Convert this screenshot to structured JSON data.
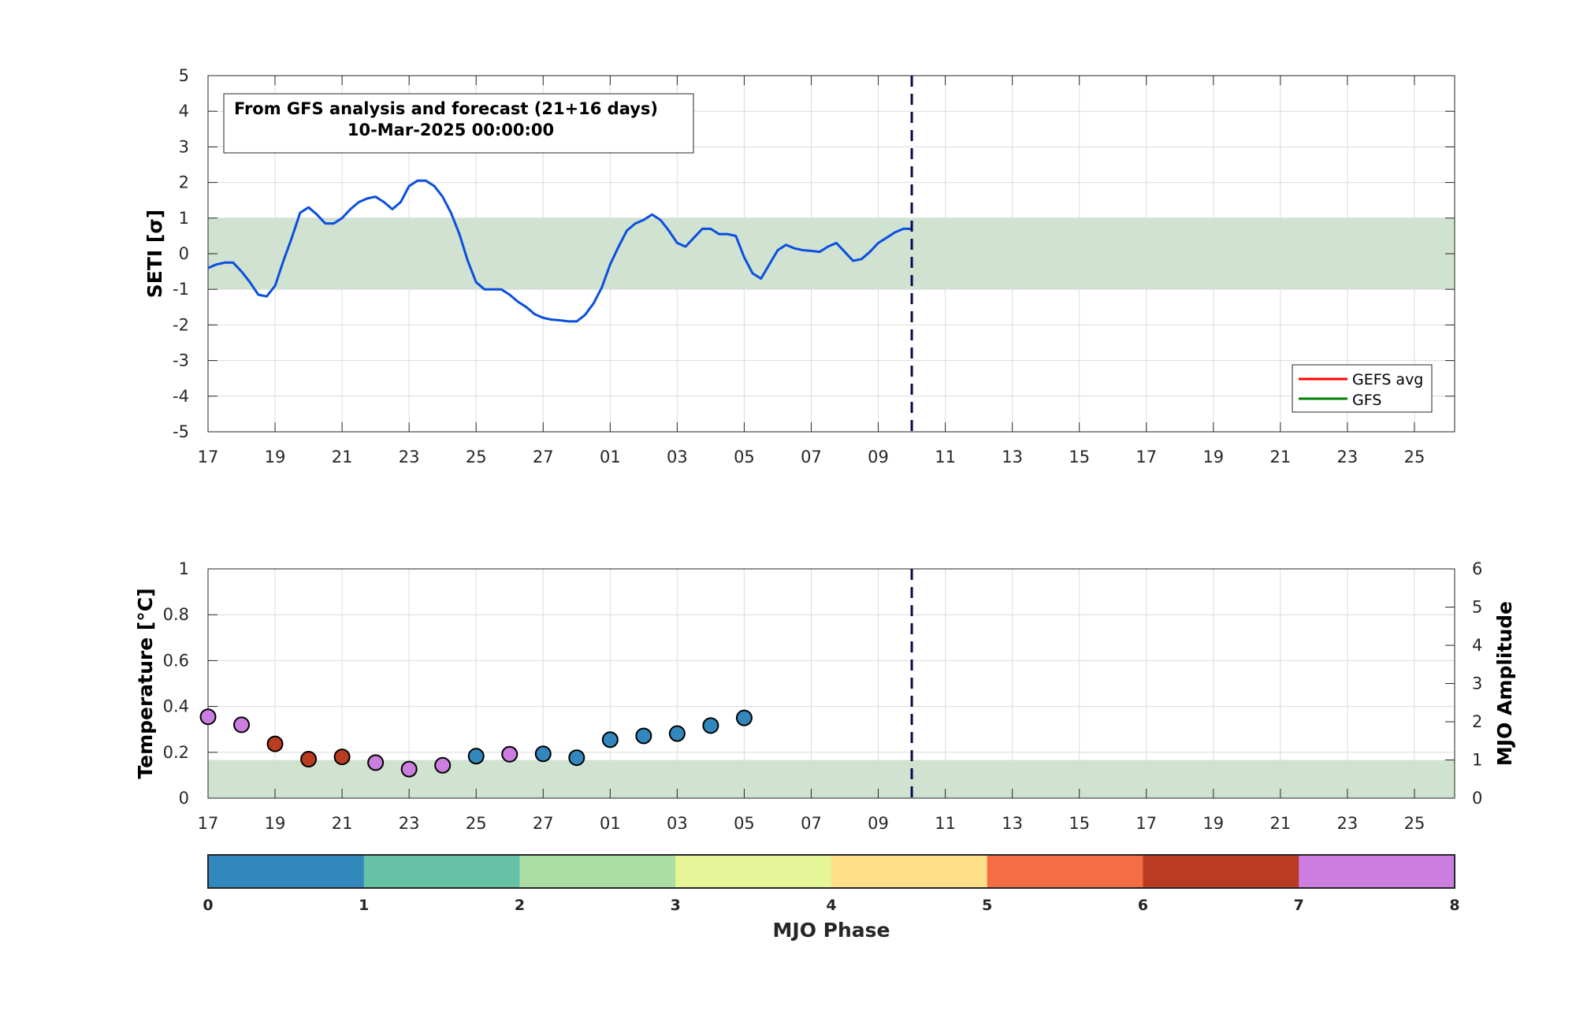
{
  "chart_data": [
    {
      "type": "line",
      "ylabel": "SETI [σ]",
      "ylim": [
        -5,
        5
      ],
      "yticks": [
        "5",
        "4",
        "3",
        "2",
        "1",
        "0",
        "-1",
        "-2",
        "-3",
        "-4",
        "-5"
      ],
      "xticks": [
        "17",
        "19",
        "21",
        "23",
        "25",
        "27",
        "01",
        "03",
        "05",
        "07",
        "09",
        "11",
        "13",
        "15",
        "17",
        "19",
        "21",
        "23",
        "25"
      ],
      "xlim_days": [
        0,
        37.2
      ],
      "x_unit": "days after 17-Feb-2025",
      "grid": true,
      "band": [
        -1,
        1
      ],
      "band_color": "#d0e2d0",
      "vline_x": 21,
      "annotation": [
        "From GFS analysis and forecast (21+16 days)",
        "10-Mar-2025 00:00:00"
      ],
      "legend": {
        "placement": "bottom-right",
        "entries": [
          {
            "name": "GEFS avg",
            "color": "#ff0000"
          },
          {
            "name": "GFS",
            "color": "#008000"
          }
        ]
      },
      "series": [
        {
          "color": "#0a4fe0",
          "x": [
            0,
            0.25,
            0.5,
            0.75,
            1,
            1.25,
            1.5,
            1.75,
            2,
            2.25,
            2.5,
            2.75,
            3,
            3.25,
            3.5,
            3.75,
            4,
            4.25,
            4.5,
            4.75,
            5,
            5.25,
            5.5,
            5.75,
            6,
            6.25,
            6.5,
            6.75,
            7,
            7.25,
            7.5,
            7.75,
            8,
            8.25,
            8.5,
            8.75,
            9,
            9.25,
            9.5,
            9.75,
            10,
            10.25,
            10.5,
            10.75,
            11,
            11.25,
            11.5,
            11.75,
            12,
            12.25,
            12.5,
            12.75,
            13,
            13.25,
            13.5,
            13.75,
            14,
            14.25,
            14.5,
            14.75,
            15,
            15.25,
            15.5,
            15.75,
            16,
            16.25,
            16.5,
            16.75,
            17,
            17.25,
            17.5,
            17.75,
            18,
            18.25,
            18.5,
            18.75,
            19,
            19.25,
            19.5,
            19.75,
            20,
            20.25,
            20.5,
            20.75,
            21
          ],
          "y": [
            -0.4,
            -0.3,
            -0.25,
            -0.25,
            -0.5,
            -0.8,
            -1.15,
            -1.2,
            -0.9,
            -0.2,
            0.45,
            1.15,
            1.3,
            1.1,
            0.85,
            0.85,
            1.0,
            1.25,
            1.45,
            1.55,
            1.6,
            1.45,
            1.25,
            1.45,
            1.9,
            2.05,
            2.05,
            1.9,
            1.6,
            1.15,
            0.55,
            -0.2,
            -0.8,
            -1.0,
            -1.0,
            -1.0,
            -1.15,
            -1.35,
            -1.5,
            -1.7,
            -1.8,
            -1.85,
            -1.87,
            -1.9,
            -1.9,
            -1.72,
            -1.4,
            -0.95,
            -0.3,
            0.2,
            0.65,
            0.85,
            0.95,
            1.1,
            0.95,
            0.65,
            0.3,
            0.2,
            0.45,
            0.7,
            0.7,
            0.55,
            0.55,
            0.5,
            -0.1,
            -0.55,
            -0.7,
            -0.3,
            0.1,
            0.25,
            0.15,
            0.1,
            0.08,
            0.05,
            0.2,
            0.3,
            0.05,
            -0.2,
            -0.15,
            0.05,
            0.3,
            0.45,
            0.6,
            0.7,
            0.7
          ]
        }
      ]
    },
    {
      "type": "scatter",
      "ylabel": "Temperature [°C]",
      "y2label": "MJO Amplitude",
      "ylim": [
        0,
        1
      ],
      "y2lim": [
        0,
        6
      ],
      "yticks": [
        "1",
        "0.8",
        "0.6",
        "0.4",
        "0.2",
        "0"
      ],
      "y2ticks": [
        "6",
        "5",
        "4",
        "3",
        "2",
        "1",
        "0"
      ],
      "xticks": [
        "17",
        "19",
        "21",
        "23",
        "25",
        "27",
        "01",
        "03",
        "05",
        "07",
        "09",
        "11",
        "13",
        "15",
        "17",
        "19",
        "21",
        "23",
        "25"
      ],
      "xlim_days": [
        0,
        37.2
      ],
      "x_unit": "days after 17-Feb-2025",
      "grid": true,
      "band_amplitude": [
        0,
        1
      ],
      "band_color": "#d0e2d0",
      "vline_x": 21,
      "points": [
        {
          "x": 0,
          "amp": 2.13,
          "phase": 7.5
        },
        {
          "x": 1,
          "amp": 1.92,
          "phase": 7.5
        },
        {
          "x": 2,
          "amp": 1.42,
          "phase": 6.5
        },
        {
          "x": 3,
          "amp": 1.02,
          "phase": 6.5
        },
        {
          "x": 4,
          "amp": 1.08,
          "phase": 6.5
        },
        {
          "x": 5,
          "amp": 0.93,
          "phase": 7.5
        },
        {
          "x": 6,
          "amp": 0.76,
          "phase": 7.5
        },
        {
          "x": 7,
          "amp": 0.86,
          "phase": 7.5
        },
        {
          "x": 8,
          "amp": 1.1,
          "phase": 0.5
        },
        {
          "x": 9,
          "amp": 1.15,
          "phase": 7.5
        },
        {
          "x": 10,
          "amp": 1.16,
          "phase": 0.5
        },
        {
          "x": 11,
          "amp": 1.06,
          "phase": 0.5
        },
        {
          "x": 12,
          "amp": 1.53,
          "phase": 0.5
        },
        {
          "x": 13,
          "amp": 1.63,
          "phase": 0.5
        },
        {
          "x": 14,
          "amp": 1.69,
          "phase": 0.5
        },
        {
          "x": 15,
          "amp": 1.9,
          "phase": 0.5
        },
        {
          "x": 16,
          "amp": 2.1,
          "phase": 0.5
        }
      ]
    }
  ],
  "colorbar": {
    "label": "MJO Phase",
    "ticks": [
      "0",
      "1",
      "2",
      "3",
      "4",
      "5",
      "6",
      "7",
      "8"
    ],
    "colors": [
      "#3288bd",
      "#66c2a5",
      "#abdda4",
      "#e6f598",
      "#fee08b",
      "#f46d43",
      "#b93b22",
      "#cc7de0"
    ]
  }
}
